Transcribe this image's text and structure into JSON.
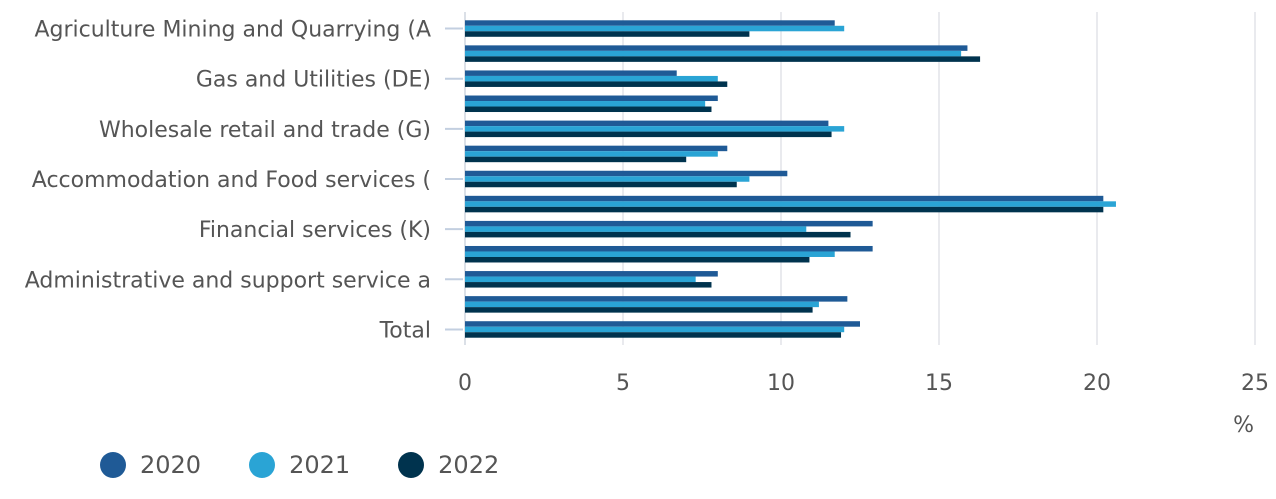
{
  "chart_data": {
    "type": "bar",
    "orientation": "horizontal",
    "categories": [
      "Agriculture Mining and Quarrying (A",
      "",
      "Gas and Utilities (DE)",
      "",
      "Wholesale retail and trade (G)",
      "",
      "Accommodation and Food services (",
      "",
      "Financial services (K)",
      "",
      "Administrative and support service a",
      "",
      "Total"
    ],
    "series": [
      {
        "name": "2020",
        "color": "#1f5a96",
        "values": [
          11.7,
          15.9,
          6.7,
          8.0,
          11.5,
          8.3,
          10.2,
          20.2,
          12.9,
          12.9,
          8.0,
          12.1,
          12.5
        ]
      },
      {
        "name": "2021",
        "color": "#2aa4d5",
        "values": [
          12.0,
          15.7,
          8.0,
          7.6,
          12.0,
          8.0,
          9.0,
          20.6,
          10.8,
          11.7,
          7.3,
          11.2,
          12.0
        ]
      },
      {
        "name": "2022",
        "color": "#00334e",
        "values": [
          9.0,
          16.3,
          8.3,
          7.8,
          11.6,
          7.0,
          8.6,
          20.2,
          12.2,
          10.9,
          7.8,
          11.0,
          11.9
        ]
      }
    ],
    "xlim": [
      0,
      25
    ],
    "xticks": [
      "0",
      "5",
      "10",
      "15",
      "20",
      "25"
    ],
    "xunit": "%",
    "grid": true,
    "legend_position": "bottom-left"
  }
}
